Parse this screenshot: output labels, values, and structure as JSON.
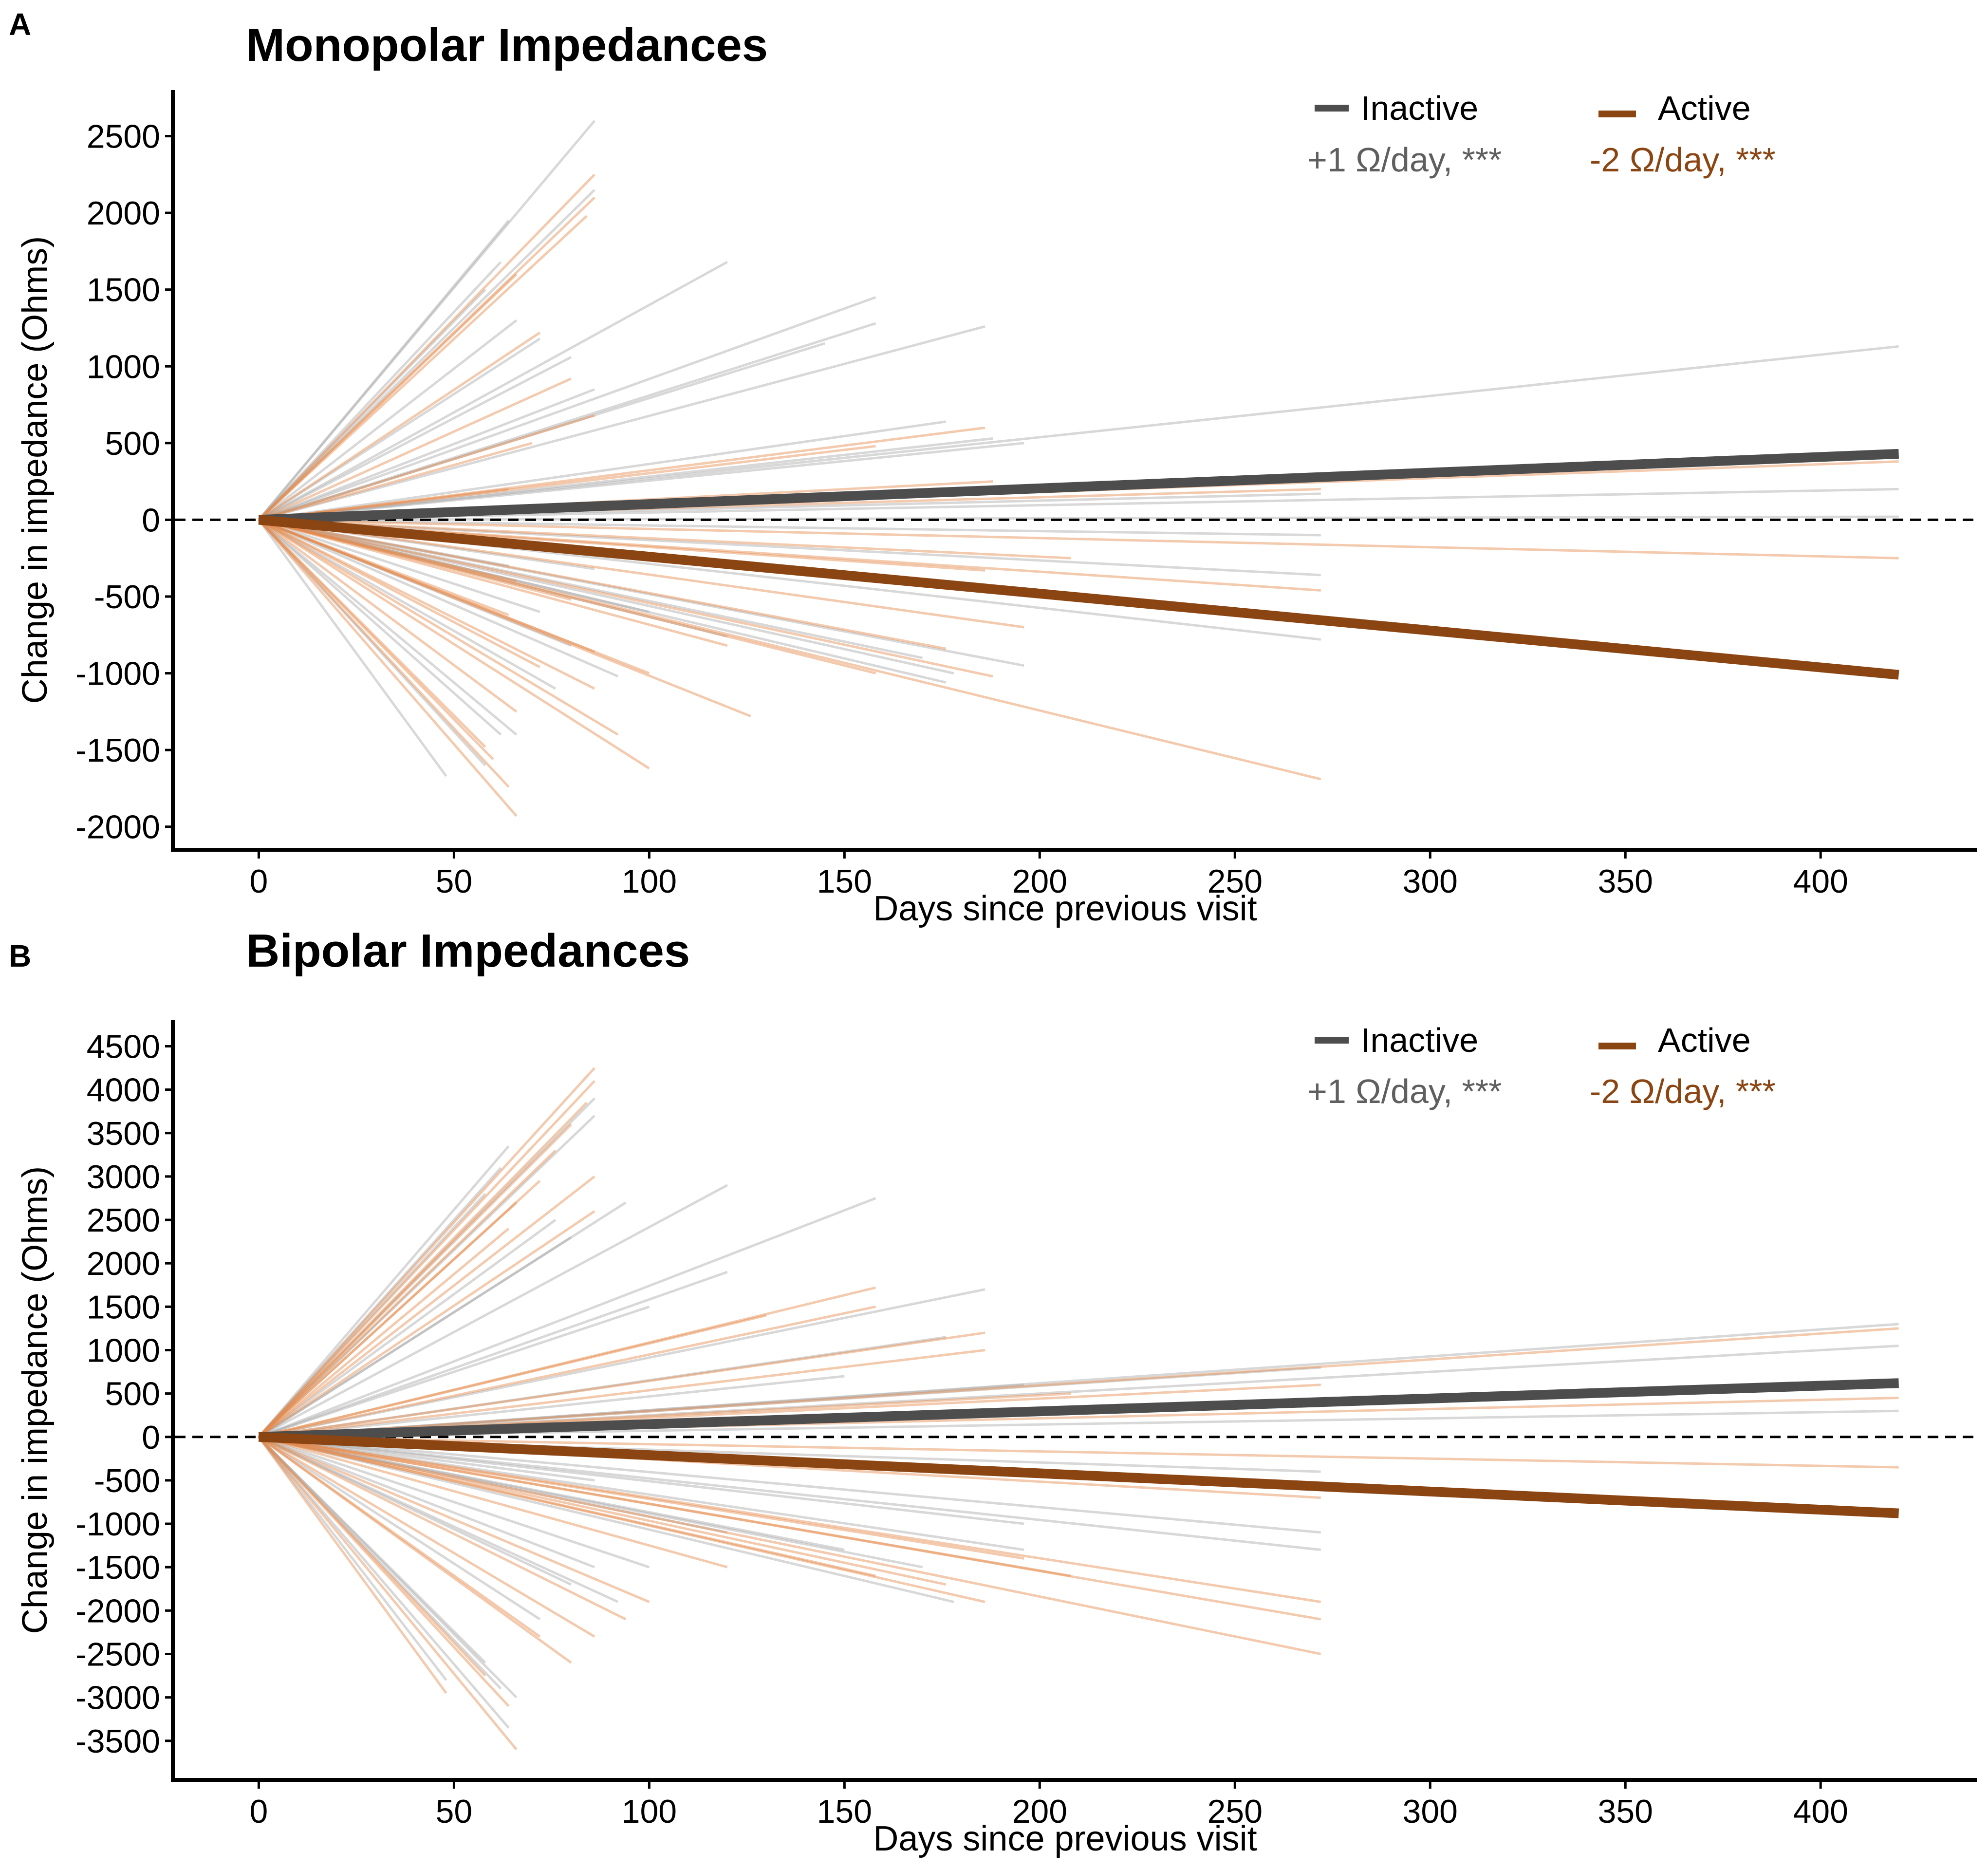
{
  "colors": {
    "inactive": "#4d4d4d",
    "active": "#8b4513",
    "inactive_faint": "#a9a9a9",
    "active_faint": "#e58a4b",
    "inactive_annot": "#5f5f5f",
    "active_annot": "#8b4513"
  },
  "chart_data": [
    {
      "panel": "A",
      "type": "line",
      "title": "Monopolar Impedances",
      "xlabel": "Days since previous visit",
      "ylabel": "Change in impedance (Ohms)",
      "xlim": [
        -22,
        440
      ],
      "ylim": [
        -2150,
        2800
      ],
      "xticks": [
        0,
        50,
        100,
        150,
        200,
        250,
        300,
        350,
        400
      ],
      "yticks": [
        -2000,
        -1500,
        -1000,
        -500,
        0,
        500,
        1000,
        1500,
        2000,
        2500
      ],
      "reference_line": 0,
      "legend_position": "top-right",
      "series": [
        {
          "name": "Inactive",
          "annotation": "+1 Ω/day, ***",
          "x": [
            0,
            420
          ],
          "y": [
            0,
            430
          ]
        },
        {
          "name": "Active",
          "annotation": "-2 Ω/day, ***",
          "x": [
            0,
            420
          ],
          "y": [
            0,
            -1010
          ]
        }
      ],
      "individual_trajectories": {
        "inactive": [
          [
            86,
            2600
          ],
          [
            86,
            2150
          ],
          [
            64,
            1950
          ],
          [
            62,
            1680
          ],
          [
            58,
            1500
          ],
          [
            66,
            1300
          ],
          [
            72,
            1180
          ],
          [
            80,
            1060
          ],
          [
            86,
            850
          ],
          [
            120,
            1680
          ],
          [
            158,
            1450
          ],
          [
            158,
            1280
          ],
          [
            145,
            1150
          ],
          [
            186,
            1260
          ],
          [
            176,
            640
          ],
          [
            188,
            530
          ],
          [
            420,
            1130
          ],
          [
            196,
            500
          ],
          [
            272,
            170
          ],
          [
            420,
            200
          ],
          [
            420,
            20
          ],
          [
            272,
            -100
          ],
          [
            272,
            -360
          ],
          [
            272,
            -780
          ],
          [
            196,
            -950
          ],
          [
            178,
            -1000
          ],
          [
            170,
            -900
          ],
          [
            120,
            -760
          ],
          [
            92,
            -1020
          ],
          [
            80,
            -820
          ],
          [
            66,
            -1400
          ],
          [
            62,
            -1400
          ],
          [
            58,
            -1600
          ],
          [
            48,
            -1670
          ],
          [
            76,
            -1100
          ],
          [
            100,
            -600
          ],
          [
            72,
            -600
          ],
          [
            64,
            -300
          ],
          [
            86,
            -320
          ],
          [
            176,
            -1060
          ]
        ],
        "active": [
          [
            86,
            2250
          ],
          [
            86,
            2100
          ],
          [
            84,
            1980
          ],
          [
            66,
            1600
          ],
          [
            72,
            1220
          ],
          [
            80,
            920
          ],
          [
            86,
            680
          ],
          [
            70,
            500
          ],
          [
            158,
            480
          ],
          [
            186,
            600
          ],
          [
            188,
            250
          ],
          [
            272,
            200
          ],
          [
            420,
            380
          ],
          [
            420,
            -250
          ],
          [
            272,
            -460
          ],
          [
            208,
            -250
          ],
          [
            186,
            -330
          ],
          [
            176,
            -840
          ],
          [
            188,
            -1020
          ],
          [
            126,
            -1280
          ],
          [
            158,
            -1000
          ],
          [
            100,
            -1620
          ],
          [
            92,
            -1400
          ],
          [
            86,
            -1100
          ],
          [
            66,
            -1930
          ],
          [
            64,
            -1740
          ],
          [
            60,
            -1560
          ],
          [
            58,
            -1480
          ],
          [
            66,
            -1250
          ],
          [
            72,
            -960
          ],
          [
            272,
            -1690
          ],
          [
            196,
            -700
          ],
          [
            80,
            -520
          ],
          [
            64,
            -620
          ],
          [
            120,
            -820
          ],
          [
            86,
            -860
          ],
          [
            100,
            -1000
          ],
          [
            150,
            -380
          ],
          [
            64,
            200
          ],
          [
            66,
            -400
          ]
        ]
      }
    },
    {
      "panel": "B",
      "type": "line",
      "title": "Bipolar Impedances",
      "xlabel": "Days since previous visit",
      "ylabel": "Change in impedance (Ohms)",
      "xlim": [
        -22,
        440
      ],
      "ylim": [
        -3950,
        4800
      ],
      "xticks": [
        0,
        50,
        100,
        150,
        200,
        250,
        300,
        350,
        400
      ],
      "yticks": [
        -3500,
        -3000,
        -2500,
        -2000,
        -1500,
        -1000,
        -500,
        0,
        500,
        1000,
        1500,
        2000,
        2500,
        3000,
        3500,
        4000,
        4500
      ],
      "reference_line": 0,
      "legend_position": "top-right",
      "series": [
        {
          "name": "Inactive",
          "annotation": "+1 Ω/day, ***",
          "x": [
            0,
            420
          ],
          "y": [
            0,
            620
          ]
        },
        {
          "name": "Active",
          "annotation": "-2 Ω/day, ***",
          "x": [
            0,
            420
          ],
          "y": [
            0,
            -880
          ]
        }
      ],
      "individual_trajectories": {
        "inactive": [
          [
            86,
            3900
          ],
          [
            86,
            3700
          ],
          [
            64,
            3350
          ],
          [
            62,
            3100
          ],
          [
            58,
            2800
          ],
          [
            76,
            2500
          ],
          [
            80,
            2300
          ],
          [
            94,
            2700
          ],
          [
            120,
            2900
          ],
          [
            158,
            2750
          ],
          [
            186,
            1700
          ],
          [
            120,
            1900
          ],
          [
            100,
            1500
          ],
          [
            420,
            1300
          ],
          [
            420,
            1050
          ],
          [
            420,
            300
          ],
          [
            272,
            800
          ],
          [
            196,
            600
          ],
          [
            176,
            1150
          ],
          [
            150,
            700
          ],
          [
            272,
            -400
          ],
          [
            272,
            -1100
          ],
          [
            272,
            -1300
          ],
          [
            196,
            -1000
          ],
          [
            196,
            -1300
          ],
          [
            178,
            -1900
          ],
          [
            170,
            -1500
          ],
          [
            150,
            -1300
          ],
          [
            120,
            -1100
          ],
          [
            100,
            -1500
          ],
          [
            92,
            -1900
          ],
          [
            86,
            -1500
          ],
          [
            80,
            -1700
          ],
          [
            66,
            -3000
          ],
          [
            64,
            -3350
          ],
          [
            62,
            -2900
          ],
          [
            58,
            -2600
          ],
          [
            48,
            -2800
          ],
          [
            72,
            -2100
          ],
          [
            86,
            -500
          ]
        ],
        "active": [
          [
            86,
            4250
          ],
          [
            86,
            4100
          ],
          [
            84,
            3850
          ],
          [
            80,
            3600
          ],
          [
            76,
            3300
          ],
          [
            72,
            2950
          ],
          [
            66,
            2700
          ],
          [
            64,
            2400
          ],
          [
            86,
            3000
          ],
          [
            86,
            2600
          ],
          [
            158,
            1720
          ],
          [
            158,
            1500
          ],
          [
            130,
            1400
          ],
          [
            186,
            1200
          ],
          [
            186,
            1000
          ],
          [
            420,
            1250
          ],
          [
            420,
            650
          ],
          [
            420,
            450
          ],
          [
            272,
            600
          ],
          [
            208,
            500
          ],
          [
            420,
            -350
          ],
          [
            272,
            -700
          ],
          [
            272,
            -1900
          ],
          [
            272,
            -2100
          ],
          [
            272,
            -2500
          ],
          [
            208,
            -1600
          ],
          [
            196,
            -1400
          ],
          [
            186,
            -1900
          ],
          [
            176,
            -1700
          ],
          [
            158,
            -1600
          ],
          [
            120,
            -1500
          ],
          [
            100,
            -1900
          ],
          [
            94,
            -2100
          ],
          [
            86,
            -2300
          ],
          [
            80,
            -2600
          ],
          [
            72,
            -2300
          ],
          [
            66,
            -3600
          ],
          [
            64,
            -3100
          ],
          [
            58,
            -2750
          ],
          [
            48,
            -2950
          ]
        ]
      }
    }
  ]
}
